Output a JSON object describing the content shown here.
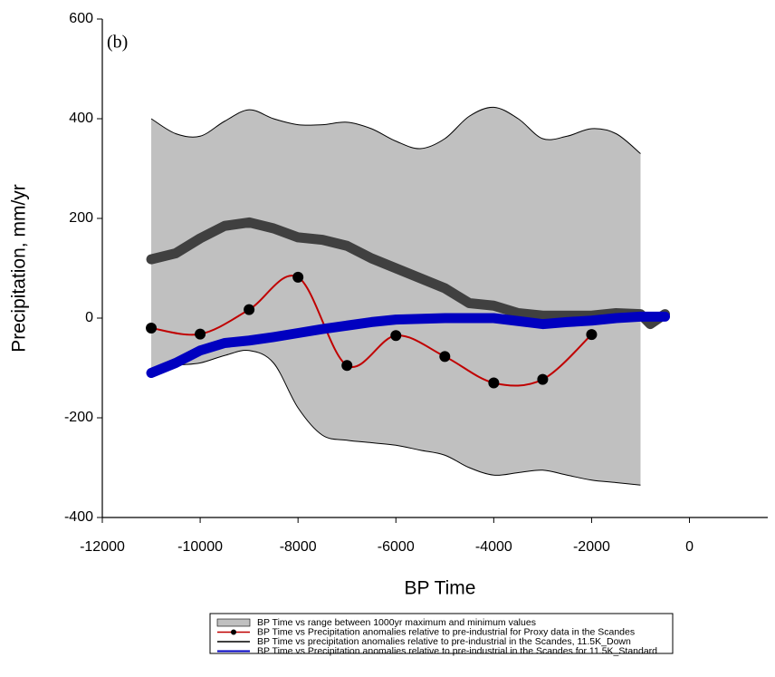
{
  "chart_data": {
    "type": "line",
    "annotation": "(b)",
    "x_label": "BP Time",
    "y_label": "Precipitation, mm/yr",
    "xlim": [
      -12000,
      1600
    ],
    "ylim": [
      -400,
      600
    ],
    "xticks": [
      -12000,
      -10000,
      -8000,
      -6000,
      -4000,
      -2000,
      0
    ],
    "yticks": [
      -400,
      -200,
      0,
      200,
      400,
      600
    ],
    "grid": false,
    "legend": "bottom",
    "series": [
      {
        "name": "BP Time vs range between 1000yr maximum and minimum values",
        "mark": "band",
        "color": "#c0c0c0",
        "x": [
          -11000,
          -10500,
          -10000,
          -9500,
          -9000,
          -8500,
          -8000,
          -7500,
          -7000,
          -6500,
          -6000,
          -5500,
          -5000,
          -4500,
          -4000,
          -3500,
          -3000,
          -2500,
          -2000,
          -1500,
          -1000
        ],
        "upper": [
          400,
          370,
          365,
          395,
          418,
          400,
          388,
          388,
          393,
          380,
          355,
          340,
          360,
          405,
          423,
          400,
          360,
          365,
          380,
          370,
          330
        ],
        "lower": [
          -105,
          -95,
          -90,
          -75,
          -65,
          -90,
          -180,
          -235,
          -245,
          -250,
          -255,
          -265,
          -275,
          -300,
          -315,
          -310,
          -305,
          -315,
          -325,
          -330,
          -335
        ]
      },
      {
        "name": "BP Time vs Precipitation anomalies relative to pre-industrial for Proxy data in the Scandes",
        "mark": "line+points",
        "color": "#c00000",
        "x": [
          -11000,
          -10000,
          -9000,
          -8000,
          -7000,
          -6000,
          -5000,
          -4000,
          -3000,
          -2000
        ],
        "values": [
          -20,
          -32,
          17,
          82,
          -95,
          -35,
          -77,
          -130,
          -123,
          -33
        ]
      },
      {
        "name": "BP Time vs precipitation anomalies relative to pre-industrial in the Scandes, 11.5K_Down",
        "mark": "line",
        "color": "#404040",
        "x": [
          -11000,
          -10500,
          -10000,
          -9500,
          -9000,
          -8500,
          -8000,
          -7500,
          -7000,
          -6500,
          -6000,
          -5500,
          -5000,
          -4500,
          -4000,
          -3500,
          -3000,
          -2500,
          -2000,
          -1500,
          -1000,
          -800,
          -500
        ],
        "values": [
          118,
          130,
          160,
          185,
          192,
          180,
          162,
          157,
          145,
          120,
          100,
          80,
          60,
          30,
          25,
          10,
          5,
          5,
          5,
          10,
          8,
          -12,
          8
        ]
      },
      {
        "name": "BP Time vs Precipitation anomalies relative to pre-industrial in the Scandes for 11.5K_Standard",
        "mark": "line",
        "color": "#0000c0",
        "x": [
          -11000,
          -10500,
          -10000,
          -9500,
          -9000,
          -8500,
          -8000,
          -7500,
          -7000,
          -6500,
          -6000,
          -5000,
          -4000,
          -3000,
          -2500,
          -2000,
          -1500,
          -1000,
          -500
        ],
        "values": [
          -110,
          -90,
          -65,
          -50,
          -45,
          -38,
          -30,
          -22,
          -15,
          -8,
          -3,
          0,
          0,
          -12,
          -8,
          -5,
          0,
          3,
          3
        ]
      }
    ]
  }
}
